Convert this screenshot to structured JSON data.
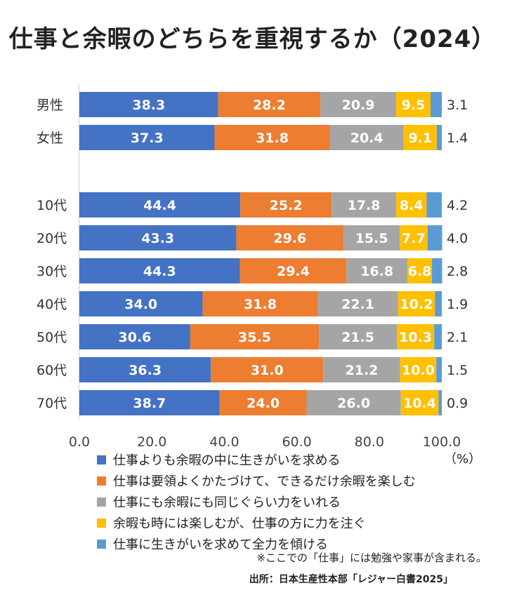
{
  "title": "仕事と余暇のどちらを重視するか（2024）",
  "unit_label": "（%）",
  "note": "※ここでの「仕事」には勉強や家事が含まれる。",
  "source": "出所：日本生産性本部「レジャー白書2025」",
  "chart_data": {
    "type": "bar",
    "orientation": "horizontal",
    "stacked": true,
    "xlim": [
      0,
      100
    ],
    "xticks": [
      "0.0",
      "20.0",
      "40.0",
      "60.0",
      "80.0",
      "100.0"
    ],
    "categories": [
      "男性",
      "女性",
      "10代",
      "20代",
      "30代",
      "40代",
      "50代",
      "60代",
      "70代"
    ],
    "series": [
      {
        "name": "仕事よりも余暇の中に生きがいを求める",
        "color": "#4472c4",
        "values": [
          38.3,
          37.3,
          44.4,
          43.3,
          44.3,
          34.0,
          30.6,
          36.3,
          38.7
        ]
      },
      {
        "name": "仕事は要領よくかたづけて、できるだけ余暇を楽しむ",
        "color": "#ed7d31",
        "values": [
          28.2,
          31.8,
          25.2,
          29.6,
          29.4,
          31.8,
          35.5,
          31.0,
          24.0
        ]
      },
      {
        "name": "仕事にも余暇にも同じぐらい力をいれる",
        "color": "#a5a5a5",
        "values": [
          20.9,
          20.4,
          17.8,
          15.5,
          16.8,
          22.1,
          21.5,
          21.2,
          26.0
        ]
      },
      {
        "name": "余暇も時には楽しむが、仕事の方に力を注ぐ",
        "color": "#ffc000",
        "values": [
          9.5,
          9.1,
          8.4,
          7.7,
          6.8,
          10.2,
          10.3,
          10.0,
          10.4
        ]
      },
      {
        "name": "仕事に生きがいを求めて全力を傾ける",
        "color": "#5b9bd5",
        "values": [
          3.1,
          1.4,
          4.2,
          4.0,
          2.8,
          1.9,
          2.1,
          1.5,
          0.9
        ]
      }
    ],
    "legend_position": "bottom",
    "grid": false
  }
}
